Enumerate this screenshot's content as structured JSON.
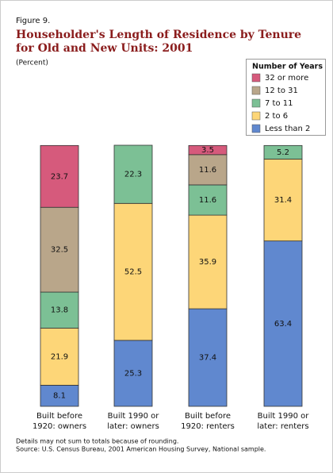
{
  "chart_data": {
    "type": "stacked-bar",
    "figure_label": "Figure 9.",
    "title": [
      "Householder's Length of Residence by Tenure",
      "for Old and New Units: 2001"
    ],
    "subtitle": "(Percent)",
    "legend_title": "Number of Years",
    "categories": [
      [
        "Built before",
        "1920: owners"
      ],
      [
        "Built 1990 or",
        "later: owners"
      ],
      [
        "Built before",
        "1920: renters"
      ],
      [
        "Built 1990 or",
        "later: renters"
      ]
    ],
    "series": [
      {
        "name": "Less than 2",
        "color": "#6088cf",
        "values": [
          8.1,
          25.3,
          37.4,
          63.4
        ]
      },
      {
        "name": "2 to 6",
        "color": "#fdd678",
        "values": [
          21.9,
          52.5,
          35.9,
          31.4
        ]
      },
      {
        "name": "7 to 11",
        "color": "#7cc095",
        "values": [
          13.8,
          22.3,
          11.6,
          5.2
        ]
      },
      {
        "name": "12 to 31",
        "color": "#b9a68a",
        "values": [
          32.5,
          null,
          11.6,
          null
        ]
      },
      {
        "name": "32 or more",
        "color": "#d65a7c",
        "values": [
          23.7,
          null,
          3.5,
          null
        ]
      }
    ],
    "notes": [
      "Details may not sum to totals because of rounding.",
      "Source: U.S. Census Bureau, 2001 American Housing Survey, National sample."
    ]
  }
}
